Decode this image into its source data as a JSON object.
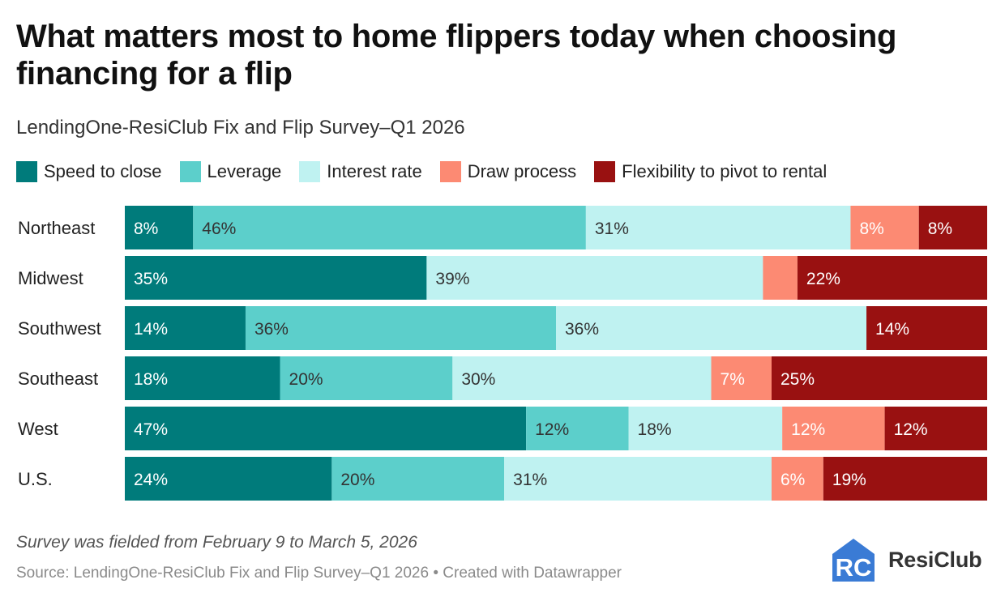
{
  "header": {
    "title": "What matters most to home flippers today when choosing financing for a flip",
    "subtitle": "LendingOne-ResiClub Fix and Flip Survey–Q1 2026"
  },
  "footer": {
    "note": "Survey was fielded from February 9 to March 5, 2026",
    "source": "Source: LendingOne-ResiClub Fix and Flip Survey–Q1 2026 • Created with Datawrapper",
    "logo_text": "ResiClub",
    "logo_mark_text": "RC"
  },
  "colors": {
    "speed": "#007b7b",
    "leverage": "#5ccfcb",
    "interest": "#bff2f1",
    "draw": "#fc8a73",
    "flex": "#991111",
    "logo_blue": "#3a7bd5"
  },
  "chart_data": {
    "type": "bar",
    "orientation": "horizontal",
    "stacked": true,
    "stack_total": 100,
    "title": "What matters most to home flippers today when choosing financing for a flip",
    "subtitle": "LendingOne-ResiClub Fix and Flip Survey–Q1 2026",
    "legend_position": "top-left",
    "categories": [
      "Northeast",
      "Midwest",
      "Southwest",
      "Southeast",
      "West",
      "U.S."
    ],
    "series": [
      {
        "name": "Speed to close",
        "color": "#007b7b",
        "label_color": "#ffffff",
        "values": [
          8,
          35,
          14,
          18,
          47,
          24
        ],
        "labels": [
          "8%",
          "35%",
          "14%",
          "18%",
          "47%",
          "24%"
        ]
      },
      {
        "name": "Leverage",
        "color": "#5ccfcb",
        "label_color": "#333333",
        "values": [
          46,
          0,
          36,
          20,
          12,
          20
        ],
        "labels": [
          "46%",
          "",
          "36%",
          "20%",
          "12%",
          "20%"
        ]
      },
      {
        "name": "Interest rate",
        "color": "#bff2f1",
        "label_color": "#333333",
        "values": [
          31,
          39,
          36,
          30,
          18,
          31
        ],
        "labels": [
          "31%",
          "39%",
          "36%",
          "30%",
          "18%",
          "31%"
        ]
      },
      {
        "name": "Draw process",
        "color": "#fc8a73",
        "label_color": "#ffffff",
        "values": [
          8,
          4,
          0,
          7,
          12,
          6
        ],
        "labels": [
          "8%",
          "",
          "",
          "7%",
          "12%",
          "6%"
        ]
      },
      {
        "name": "Flexibility to pivot to rental",
        "color": "#991111",
        "label_color": "#ffffff",
        "values": [
          8,
          22,
          14,
          25,
          12,
          19
        ],
        "labels": [
          "8%",
          "22%",
          "14%",
          "25%",
          "12%",
          "19%"
        ]
      }
    ]
  }
}
